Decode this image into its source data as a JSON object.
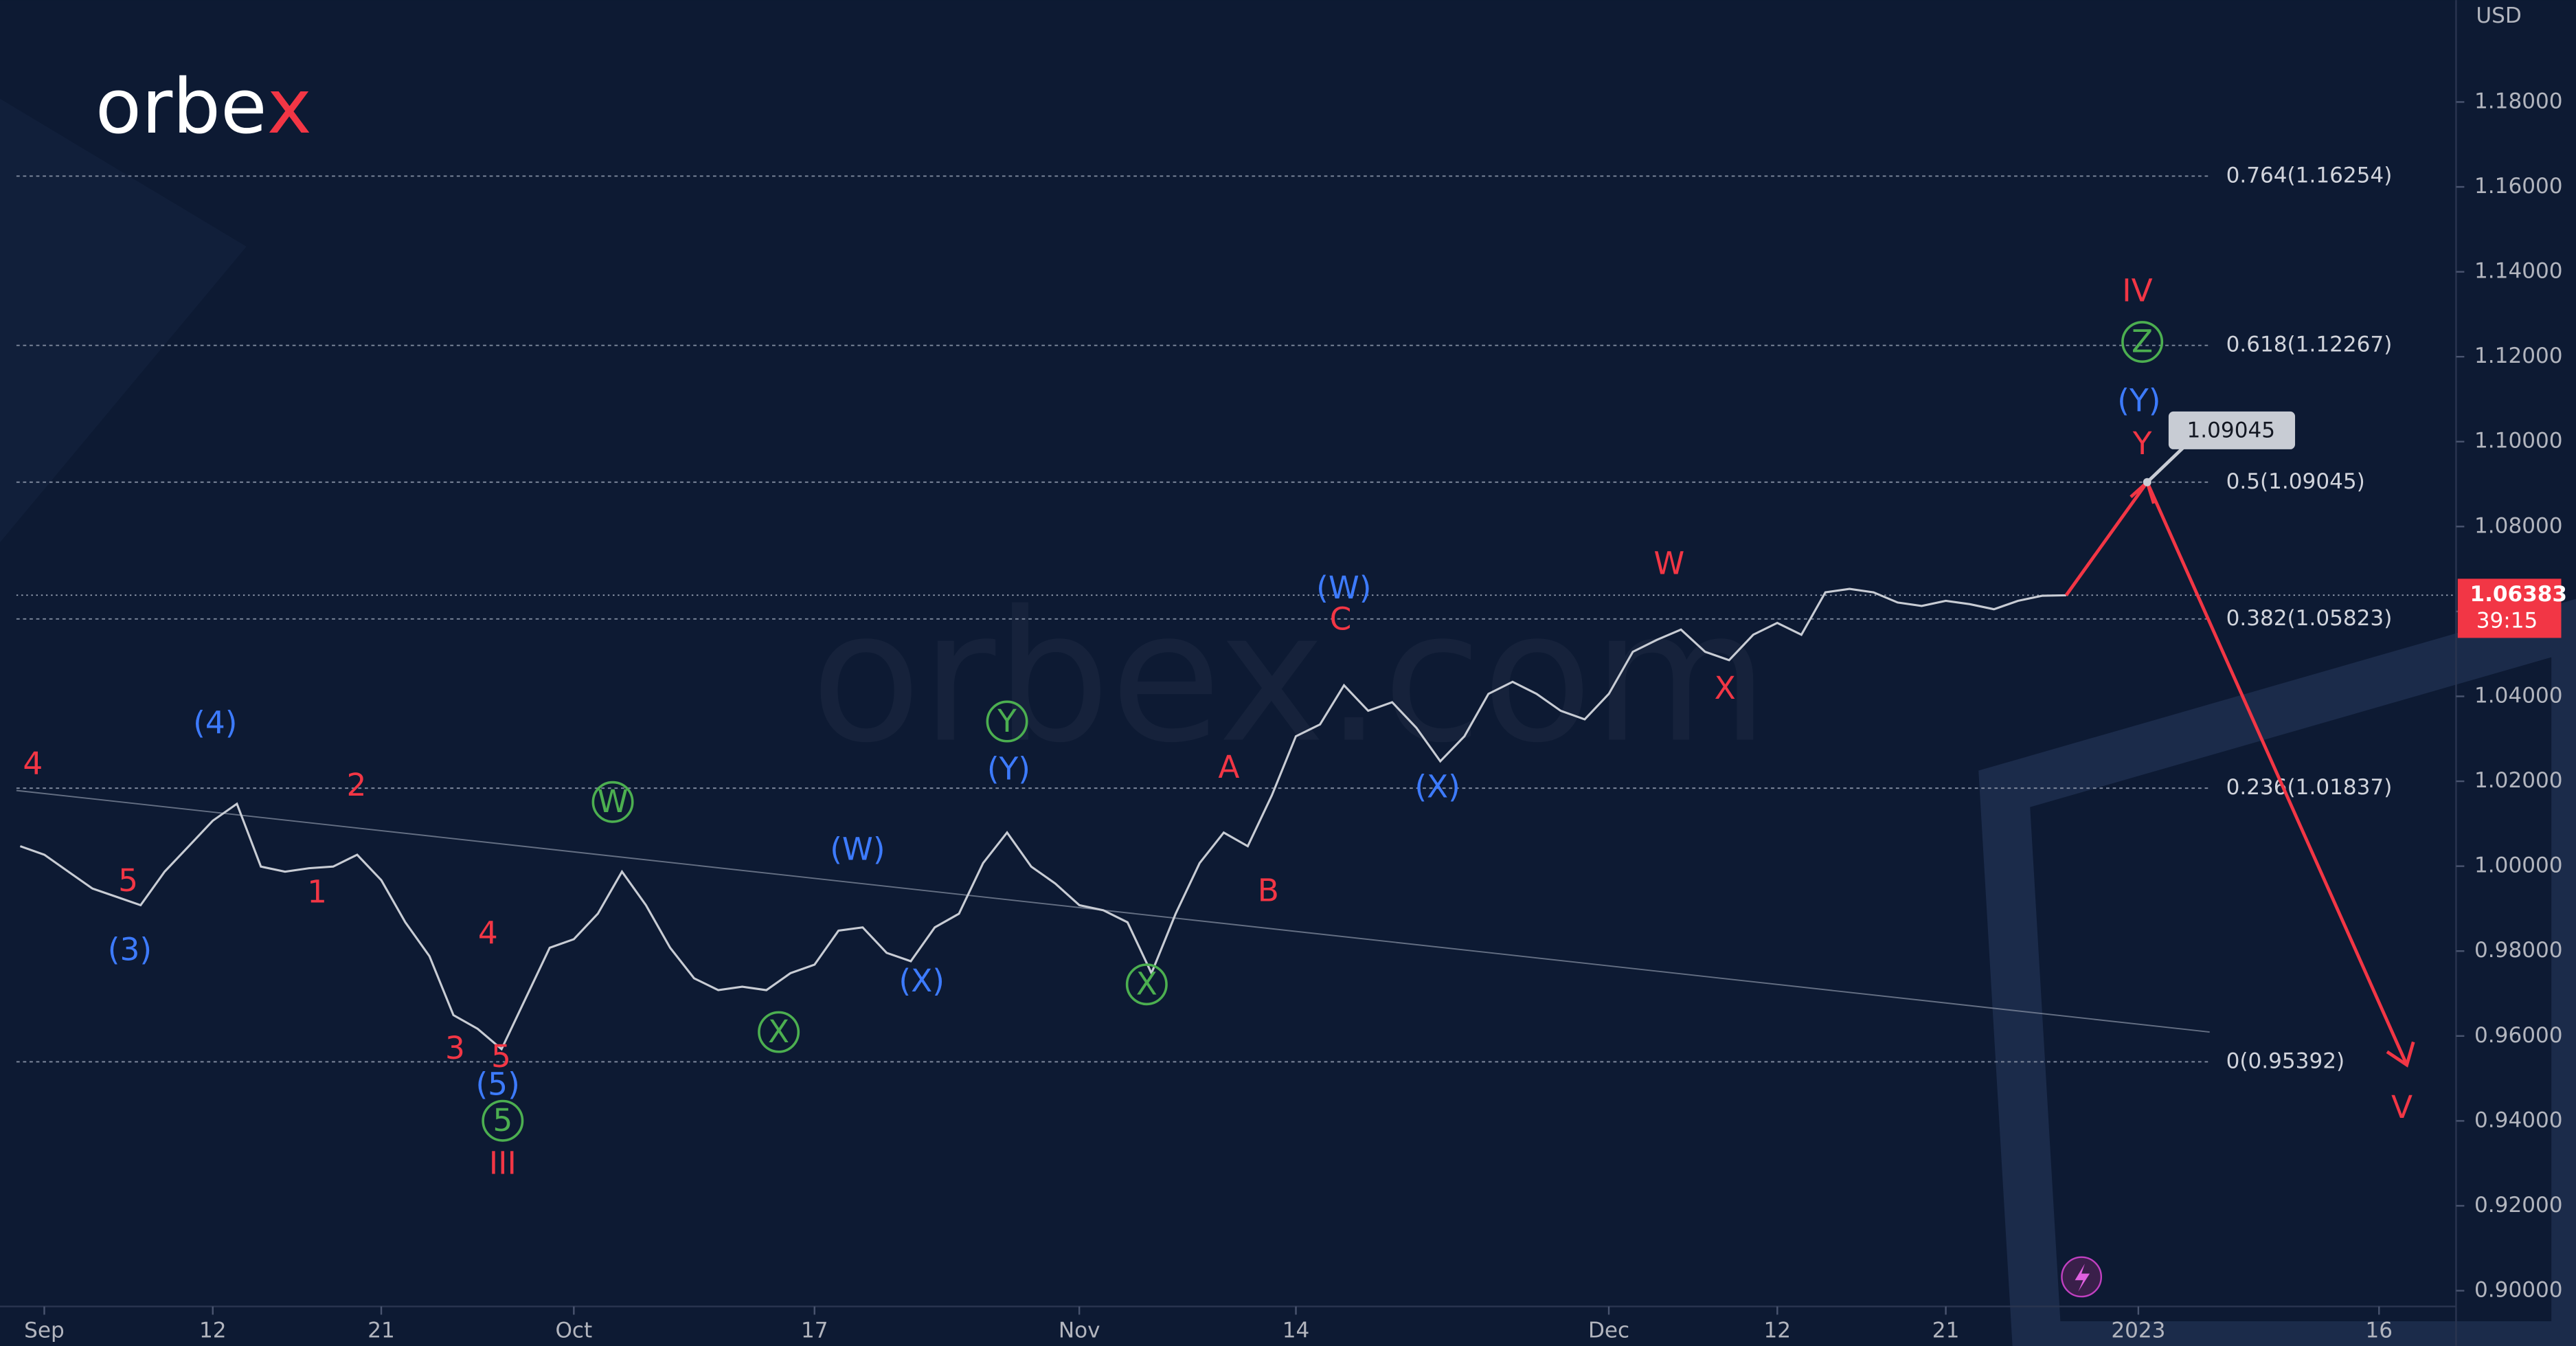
{
  "logo": {
    "main": "orbe",
    "accent": "x"
  },
  "watermark": "orbex.com",
  "chart_data": {
    "type": "line",
    "currency": "USD",
    "color": "#c8ccd4",
    "x": [
      -1,
      0,
      1,
      2,
      3,
      4,
      5,
      6,
      7,
      8,
      9,
      10,
      11,
      12,
      13,
      14,
      15,
      16,
      17,
      18,
      19,
      20,
      21,
      22,
      23,
      24,
      25,
      26,
      27,
      28,
      29,
      30,
      31,
      32,
      33,
      34,
      35,
      36,
      37,
      38,
      39,
      40,
      41,
      42,
      43,
      44,
      45,
      46,
      47,
      48,
      49,
      50,
      51,
      52,
      53,
      54,
      55,
      56,
      57,
      58,
      59,
      60,
      61,
      62,
      63,
      64,
      65,
      66,
      67,
      68,
      69,
      70,
      71,
      72,
      73,
      74,
      75,
      76,
      77,
      78,
      79,
      80,
      81,
      82,
      83,
      84
    ],
    "values": [
      1.0047,
      1.0027,
      0.9987,
      0.9947,
      0.9928,
      0.9908,
      0.9987,
      1.0047,
      1.0107,
      1.0147,
      0.9999,
      0.9987,
      0.9995,
      0.9999,
      1.0027,
      0.9967,
      0.9868,
      0.9788,
      0.9649,
      0.9617,
      0.9569,
      0.9689,
      0.9808,
      0.9828,
      0.9888,
      0.9987,
      0.9908,
      0.9808,
      0.9736,
      0.9708,
      0.9716,
      0.9708,
      0.9748,
      0.9768,
      0.9848,
      0.9856,
      0.9796,
      0.9776,
      0.9856,
      0.9888,
      1.0007,
      1.0079,
      0.9999,
      0.9959,
      0.9908,
      0.9896,
      0.9868,
      0.9748,
      0.9888,
      1.0007,
      1.0079,
      1.0047,
      1.0167,
      1.0306,
      1.0334,
      1.0426,
      1.0366,
      1.0386,
      1.0326,
      1.0247,
      1.0306,
      1.0406,
      1.0434,
      1.0406,
      1.0366,
      1.0346,
      1.0406,
      1.0505,
      1.0533,
      1.0557,
      1.0505,
      1.0485,
      1.0545,
      1.0573,
      1.0545,
      1.0645,
      1.0653,
      1.0645,
      1.0621,
      1.0613,
      1.0625,
      1.0617,
      1.0605,
      1.0625,
      1.0637,
      1.0638
    ],
    "xlim": [
      -1.84,
      100.2
    ],
    "xticks": [
      {
        "value": 0,
        "label": "Sep"
      },
      {
        "value": 7,
        "label": "12"
      },
      {
        "value": 14,
        "label": "21"
      },
      {
        "value": 22,
        "label": "Oct"
      },
      {
        "value": 32,
        "label": "17"
      },
      {
        "value": 43,
        "label": "Nov"
      },
      {
        "value": 52,
        "label": "14"
      },
      {
        "value": 65,
        "label": "Dec"
      },
      {
        "value": 72,
        "label": "12"
      },
      {
        "value": 79,
        "label": "21"
      },
      {
        "value": 87,
        "label": "2023"
      },
      {
        "value": 97,
        "label": "16"
      }
    ],
    "ylim": [
      0.887,
      1.204
    ],
    "yticks": [
      {
        "value": 0.9,
        "label": "0.90000"
      },
      {
        "value": 0.92,
        "label": "0.92000"
      },
      {
        "value": 0.94,
        "label": "0.94000"
      },
      {
        "value": 0.96,
        "label": "0.96000"
      },
      {
        "value": 0.98,
        "label": "0.98000"
      },
      {
        "value": 1.0,
        "label": "1.00000"
      },
      {
        "value": 1.02,
        "label": "1.02000"
      },
      {
        "value": 1.04,
        "label": "1.04000"
      },
      {
        "value": 1.06,
        "label": "1.06000"
      },
      {
        "value": 1.08,
        "label": "1.08000"
      },
      {
        "value": 1.1,
        "label": "1.10000"
      },
      {
        "value": 1.12,
        "label": "1.12000"
      },
      {
        "value": 1.14,
        "label": "1.14000"
      },
      {
        "value": 1.16,
        "label": "1.16000"
      },
      {
        "value": 1.18,
        "label": "1.18000"
      }
    ],
    "levels": [
      {
        "value": 1.16254,
        "label": "0.764(1.16254)"
      },
      {
        "value": 1.12267,
        "label": "0.618(1.12267)"
      },
      {
        "value": 1.09045,
        "label": "0.5(1.09045)"
      },
      {
        "value": 1.05823,
        "label": "0.382(1.05823)"
      },
      {
        "value": 1.01837,
        "label": "0.236(1.01837)"
      },
      {
        "value": 0.95392,
        "label": "0(0.95392)"
      }
    ],
    "current_price": {
      "value": 1.06383,
      "countdown": "39:15"
    },
    "target": 1.09045,
    "annotations": [
      {
        "text": "4",
        "color": "#f23645"
      },
      {
        "text": "5",
        "color": "#f23645"
      },
      {
        "text": "(3)",
        "color": "#3d7bff"
      },
      {
        "text": "(4)",
        "color": "#3d7bff"
      },
      {
        "text": "2",
        "color": "#f23645"
      },
      {
        "text": "1",
        "color": "#f23645"
      },
      {
        "text": "4",
        "color": "#f23645"
      },
      {
        "text": "3",
        "color": "#f23645"
      },
      {
        "text": "5",
        "color": "#f23645"
      },
      {
        "text": "(5)",
        "color": "#3d7bff"
      },
      {
        "text": "5",
        "color": "#4caf50",
        "circled": true
      },
      {
        "text": "III",
        "color": "#f23645"
      },
      {
        "text": "W",
        "color": "#4caf50",
        "circled": true
      },
      {
        "text": "(W)",
        "color": "#3d7bff"
      },
      {
        "text": "X",
        "color": "#4caf50",
        "circled": true
      },
      {
        "text": "(X)",
        "color": "#3d7bff"
      },
      {
        "text": "Y",
        "color": "#4caf50",
        "circled": true
      },
      {
        "text": "(Y)",
        "color": "#3d7bff"
      },
      {
        "text": "X",
        "color": "#4caf50",
        "circled": true
      },
      {
        "text": "A",
        "color": "#f23645"
      },
      {
        "text": "B",
        "color": "#f23645"
      },
      {
        "text": "(W)",
        "color": "#3d7bff"
      },
      {
        "text": "C",
        "color": "#f23645"
      },
      {
        "text": "(X)",
        "color": "#3d7bff"
      },
      {
        "text": "W",
        "color": "#f23645"
      },
      {
        "text": "X",
        "color": "#f23645"
      },
      {
        "text": "IV",
        "color": "#f23645"
      },
      {
        "text": "Z",
        "color": "#4caf50",
        "circled": true
      },
      {
        "text": "(Y)",
        "color": "#3d7bff"
      },
      {
        "text": "Y",
        "color": "#f23645"
      },
      {
        "text": "V",
        "color": "#f23645"
      }
    ]
  }
}
